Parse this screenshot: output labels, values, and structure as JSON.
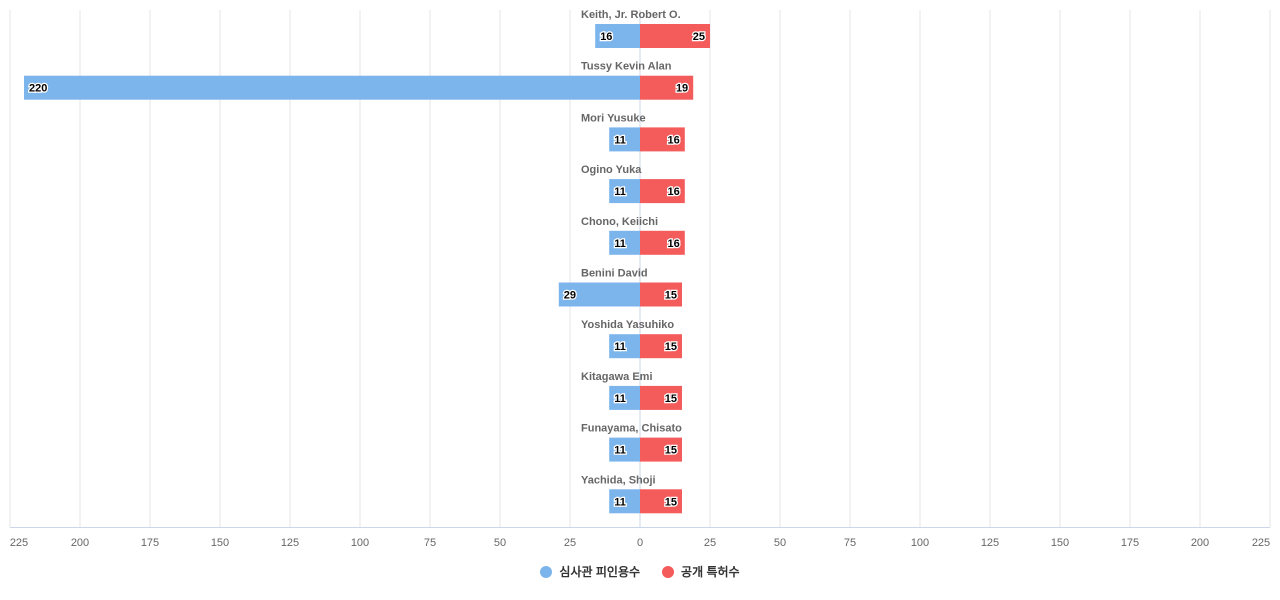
{
  "chart_data": {
    "type": "bar",
    "orientation": "horizontal-diverging",
    "categories": [
      "Keith, Jr. Robert O.",
      "Tussy Kevin Alan",
      "Mori Yusuke",
      "Ogino Yuka",
      "Chono, Keiichi",
      "Benini David",
      "Yoshida Yasuhiko",
      "Kitagawa Emi",
      "Funayama, Chisato",
      "Yachida, Shoji"
    ],
    "series": [
      {
        "name": "심사관 피인용수",
        "color": "#7cb5ec",
        "side": "left",
        "values": [
          16,
          220,
          11,
          11,
          11,
          29,
          11,
          11,
          11,
          11
        ]
      },
      {
        "name": "공개 특허수",
        "color": "#f45b5b",
        "side": "right",
        "values": [
          25,
          19,
          16,
          16,
          16,
          15,
          15,
          15,
          15,
          15
        ]
      }
    ],
    "xlim": [
      -225,
      225
    ],
    "tick_labels": [
      "225",
      "200",
      "175",
      "150",
      "125",
      "100",
      "75",
      "50",
      "25",
      "0",
      "25",
      "50",
      "75",
      "100",
      "125",
      "150",
      "175",
      "200",
      "225"
    ],
    "grid": true,
    "legend_position": "bottom"
  }
}
